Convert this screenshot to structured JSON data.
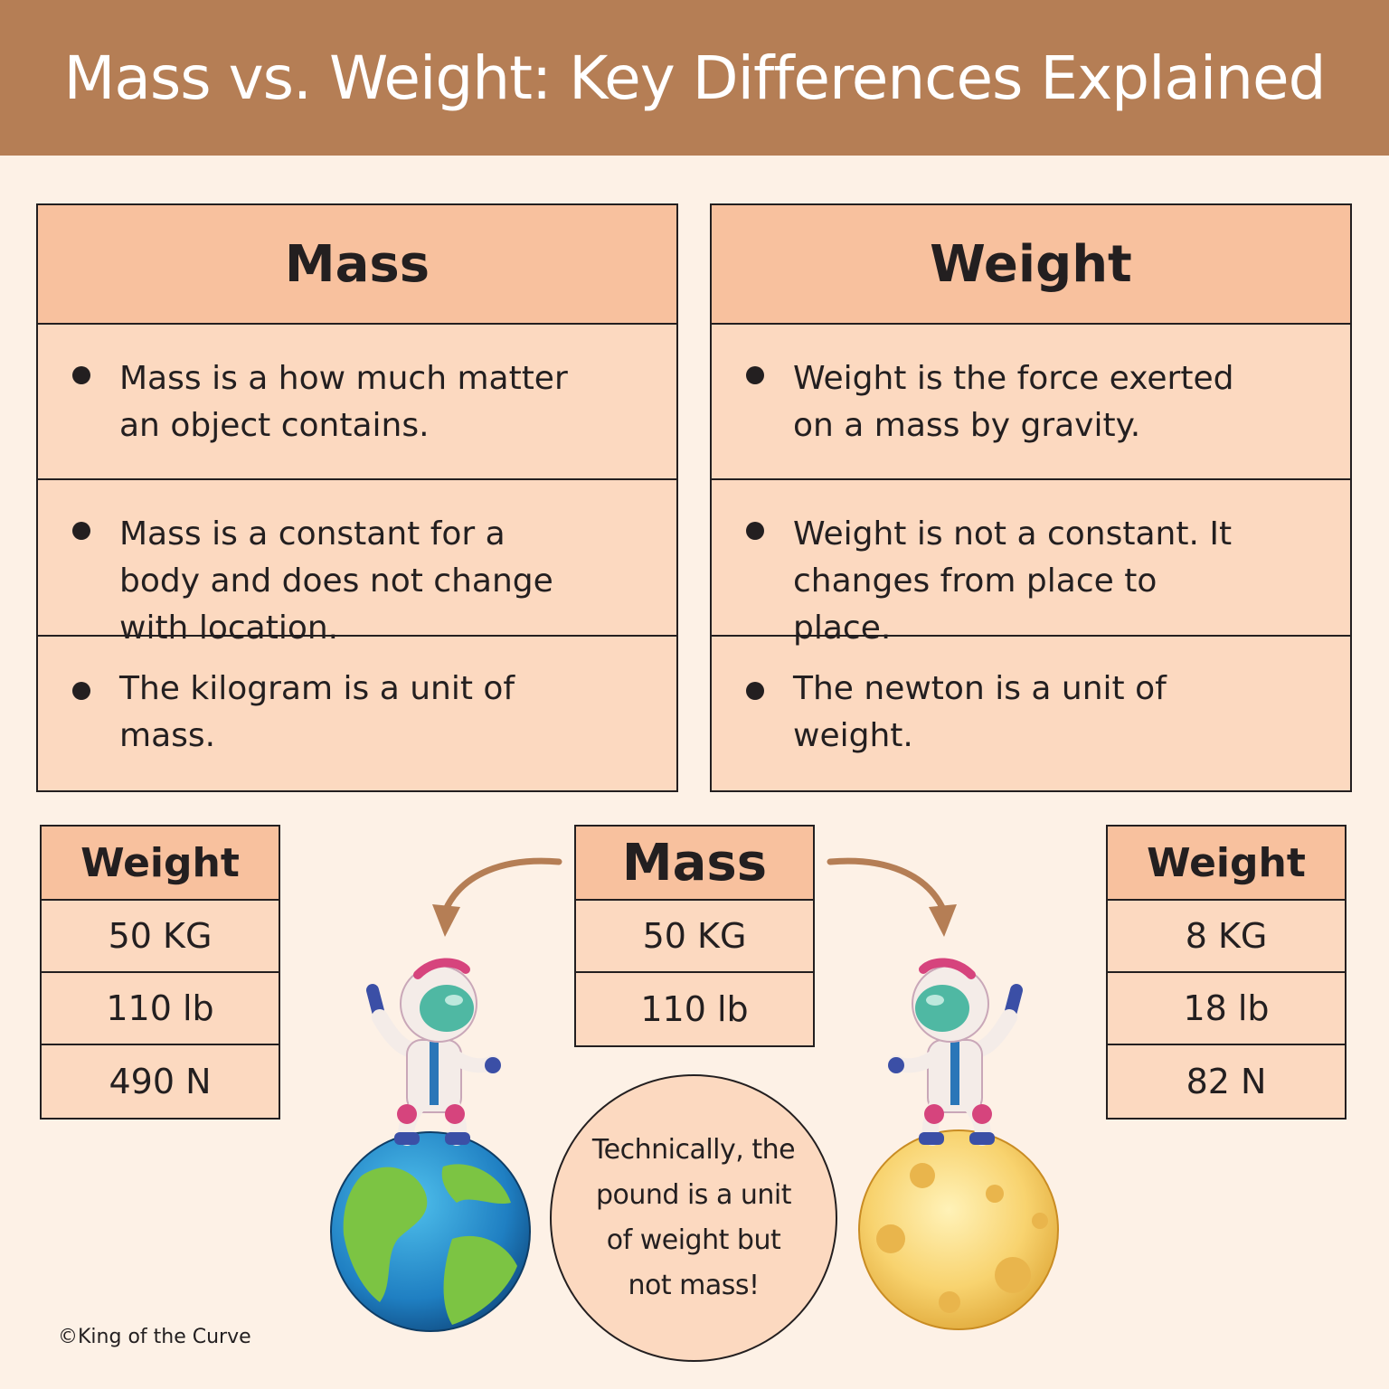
{
  "title": "Mass vs. Weight: Key Differences Explained",
  "mass_column": {
    "heading": "Mass",
    "points": [
      "Mass is a how much matter an object contains.",
      "Mass is a constant for a body and does not change with location.",
      "The kilogram is a unit of mass."
    ]
  },
  "weight_column": {
    "heading": "Weight",
    "points": [
      "Weight is the force exerted on a mass by gravity.",
      "Weight is not a constant. It changes from place to place.",
      "The newton is a unit of weight."
    ]
  },
  "earth_weight_table": {
    "heading": "Weight",
    "rows": [
      "50 KG",
      "110 lb",
      "490 N"
    ]
  },
  "mass_table": {
    "heading": "Mass",
    "rows": [
      "50 KG",
      "110 lb"
    ]
  },
  "moon_weight_table": {
    "heading": "Weight",
    "rows": [
      "8 KG",
      "18 lb",
      "82 N"
    ]
  },
  "note": "Technically, the pound is a unit of weight but not mass!",
  "credit": "©King of the Curve",
  "icons": [
    "curved-arrow-left-icon",
    "curved-arrow-right-icon",
    "astronaut-icon",
    "earth-icon",
    "moon-icon"
  ],
  "colors": {
    "banner": "#b57e55",
    "background": "#fdf1e6",
    "header_fill": "#f8c19e",
    "cell_fill": "#fcd9c0",
    "arrow": "#b57e55"
  }
}
